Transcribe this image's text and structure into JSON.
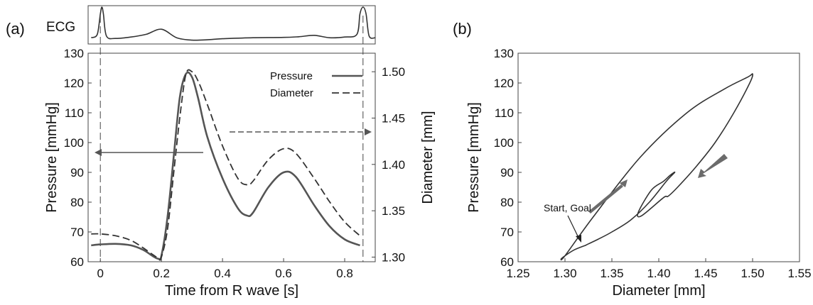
{
  "panels": {
    "a_label": "(a)",
    "b_label": "(b)",
    "ecg_label": "ECG"
  },
  "chart_data": [
    {
      "type": "line",
      "panel": "(a)",
      "xlabel": "Time from R wave [s]",
      "ylabel": "Pressure [mmHg]",
      "y2label": "Diameter [mm]",
      "xlim": [
        -0.04,
        0.9
      ],
      "ylim": [
        60,
        130
      ],
      "y2lim": [
        1.295,
        1.52
      ],
      "xticks": [
        0,
        0.2,
        0.4,
        0.6,
        0.8
      ],
      "xtick_labels": [
        "0",
        "0.2",
        "0.4",
        "0.6",
        "0.8"
      ],
      "yticks": [
        60,
        70,
        80,
        90,
        100,
        110,
        120,
        130
      ],
      "ytick_labels": [
        "60",
        "70",
        "80",
        "90",
        "100",
        "110",
        "120",
        "130"
      ],
      "y2ticks": [
        1.3,
        1.35,
        1.4,
        1.45,
        1.5
      ],
      "y2tick_labels": [
        "1.30",
        "1.35",
        "1.40",
        "1.45",
        "1.50"
      ],
      "legend": {
        "position": "top-right",
        "entries": [
          "Pressure",
          "Diameter"
        ]
      },
      "series": [
        {
          "name": "Pressure",
          "axis": "left",
          "style": "solid",
          "x": [
            -0.03,
            0.0,
            0.05,
            0.1,
            0.14,
            0.17,
            0.19,
            0.2,
            0.22,
            0.24,
            0.26,
            0.28,
            0.3,
            0.32,
            0.35,
            0.4,
            0.45,
            0.48,
            0.5,
            0.55,
            0.6,
            0.64,
            0.7,
            0.75,
            0.8,
            0.85
          ],
          "values": [
            65.5,
            65.8,
            66.0,
            65.5,
            64.0,
            62.0,
            61.0,
            62.0,
            75.0,
            95.0,
            115.0,
            123.0,
            122.0,
            115.0,
            102.0,
            88.0,
            78.0,
            75.5,
            76.5,
            85.0,
            90.0,
            88.5,
            79.0,
            72.0,
            67.5,
            65.5
          ]
        },
        {
          "name": "Diameter",
          "axis": "right",
          "style": "dashed",
          "x": [
            -0.03,
            0.0,
            0.05,
            0.1,
            0.14,
            0.17,
            0.19,
            0.2,
            0.22,
            0.24,
            0.26,
            0.28,
            0.3,
            0.32,
            0.35,
            0.4,
            0.45,
            0.48,
            0.5,
            0.55,
            0.6,
            0.64,
            0.7,
            0.75,
            0.8,
            0.85
          ],
          "values": [
            1.325,
            1.325,
            1.323,
            1.318,
            1.31,
            1.303,
            1.299,
            1.3,
            1.33,
            1.39,
            1.45,
            1.497,
            1.5,
            1.49,
            1.465,
            1.42,
            1.385,
            1.378,
            1.382,
            1.405,
            1.417,
            1.412,
            1.385,
            1.36,
            1.338,
            1.323
          ]
        }
      ],
      "annotations": [
        {
          "type": "arrow",
          "direction": "left",
          "style": "solid",
          "meaning": "Pressure"
        },
        {
          "type": "arrow",
          "direction": "right",
          "style": "dashed",
          "meaning": "Diameter"
        }
      ],
      "vertical_markers_x": [
        0,
        0.86
      ],
      "ecg": {
        "x": [
          -0.03,
          -0.01,
          0.0,
          0.005,
          0.01,
          0.02,
          0.05,
          0.1,
          0.15,
          0.2,
          0.25,
          0.3,
          0.35,
          0.4,
          0.5,
          0.6,
          0.65,
          0.7,
          0.75,
          0.8,
          0.84,
          0.85,
          0.86,
          0.87,
          0.88,
          0.9
        ],
        "values": [
          0.1,
          0.2,
          0.8,
          1.0,
          0.8,
          0.15,
          0.08,
          0.12,
          0.2,
          0.35,
          0.1,
          0.03,
          0.04,
          0.07,
          0.1,
          0.11,
          0.13,
          0.17,
          0.1,
          0.12,
          0.2,
          0.8,
          1.0,
          0.8,
          0.15,
          0.1
        ]
      }
    },
    {
      "type": "line",
      "panel": "(b)",
      "xlabel": "Diameter [mm]",
      "ylabel": "Pressure [mmHg]",
      "xlim": [
        1.25,
        1.55
      ],
      "ylim": [
        60,
        130
      ],
      "xticks": [
        1.25,
        1.3,
        1.35,
        1.4,
        1.45,
        1.5,
        1.55
      ],
      "xtick_labels": [
        "1.25",
        "1.30",
        "1.35",
        "1.40",
        "1.45",
        "1.50",
        "1.55"
      ],
      "yticks": [
        60,
        70,
        80,
        90,
        100,
        110,
        120,
        130
      ],
      "ytick_labels": [
        "60",
        "70",
        "80",
        "90",
        "100",
        "110",
        "120",
        "130"
      ],
      "series": [
        {
          "style": "solid",
          "x": [
            1.322,
            1.31,
            1.3,
            1.296,
            1.3,
            1.33,
            1.38,
            1.43,
            1.47,
            1.495,
            1.5,
            1.497,
            1.48,
            1.46,
            1.44,
            1.42,
            1.41,
            1.405,
            1.382,
            1.378,
            1.392,
            1.405,
            1.412,
            1.417,
            1.408,
            1.39,
            1.37,
            1.35,
            1.335,
            1.325,
            1.322
          ],
          "values": [
            65.5,
            64.0,
            62.0,
            61.0,
            62.0,
            75.0,
            95.0,
            110.0,
            118.0,
            122.0,
            123.0,
            120.0,
            110.0,
            100.0,
            92.0,
            85.0,
            82.0,
            81.5,
            75.5,
            76.5,
            84.0,
            87.0,
            89.0,
            90.0,
            87.0,
            80.0,
            74.0,
            70.0,
            67.5,
            66.0,
            65.5
          ]
        }
      ],
      "annotations": [
        {
          "text": "Start, Goal",
          "at_x": 1.322,
          "at_y": 65.5
        },
        {
          "type": "block-arrow",
          "direction": "up-right"
        },
        {
          "type": "block-arrow",
          "direction": "down-left"
        }
      ]
    }
  ]
}
